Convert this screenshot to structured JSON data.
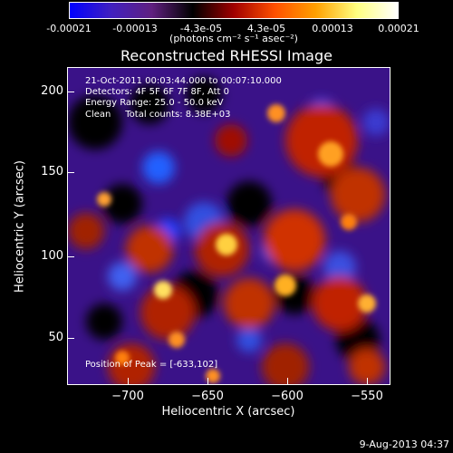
{
  "colorbar": {
    "tick_labels": [
      "-0.00021",
      "-0.00013",
      "-4.3e-05",
      "4.3e-05",
      "0.00013",
      "0.00021"
    ],
    "units_label": "(photons cm⁻² s⁻¹ asec⁻²)",
    "colors": [
      "#0000ff",
      "#4020c0",
      "#602080",
      "#000000",
      "#a00000",
      "#ff5000",
      "#ffa000",
      "#ffff80",
      "#ffffff"
    ]
  },
  "plot": {
    "title": "Reconstructed RHESSI Image",
    "x_label": "Heliocentric X (arcsec)",
    "y_label": "Heliocentric Y (arcsec)",
    "x_ticks": [
      "−700",
      "−650",
      "−600",
      "−550"
    ],
    "y_ticks": [
      "200",
      "150",
      "100",
      "50"
    ]
  },
  "overlay": {
    "line1": "21-Oct-2011 00:03:44.000 to 00:07:10.000",
    "line2": "Detectors: 4F 5F 6F 7F 8F, Att 0",
    "line3": "Energy Range: 25.0 - 50.0 keV",
    "line4": "Clean     Total counts: 8.38E+03",
    "peak": "Position of Peak = [-633,102]"
  },
  "footer": {
    "datestamp": "9-Aug-2013 04:37"
  }
}
